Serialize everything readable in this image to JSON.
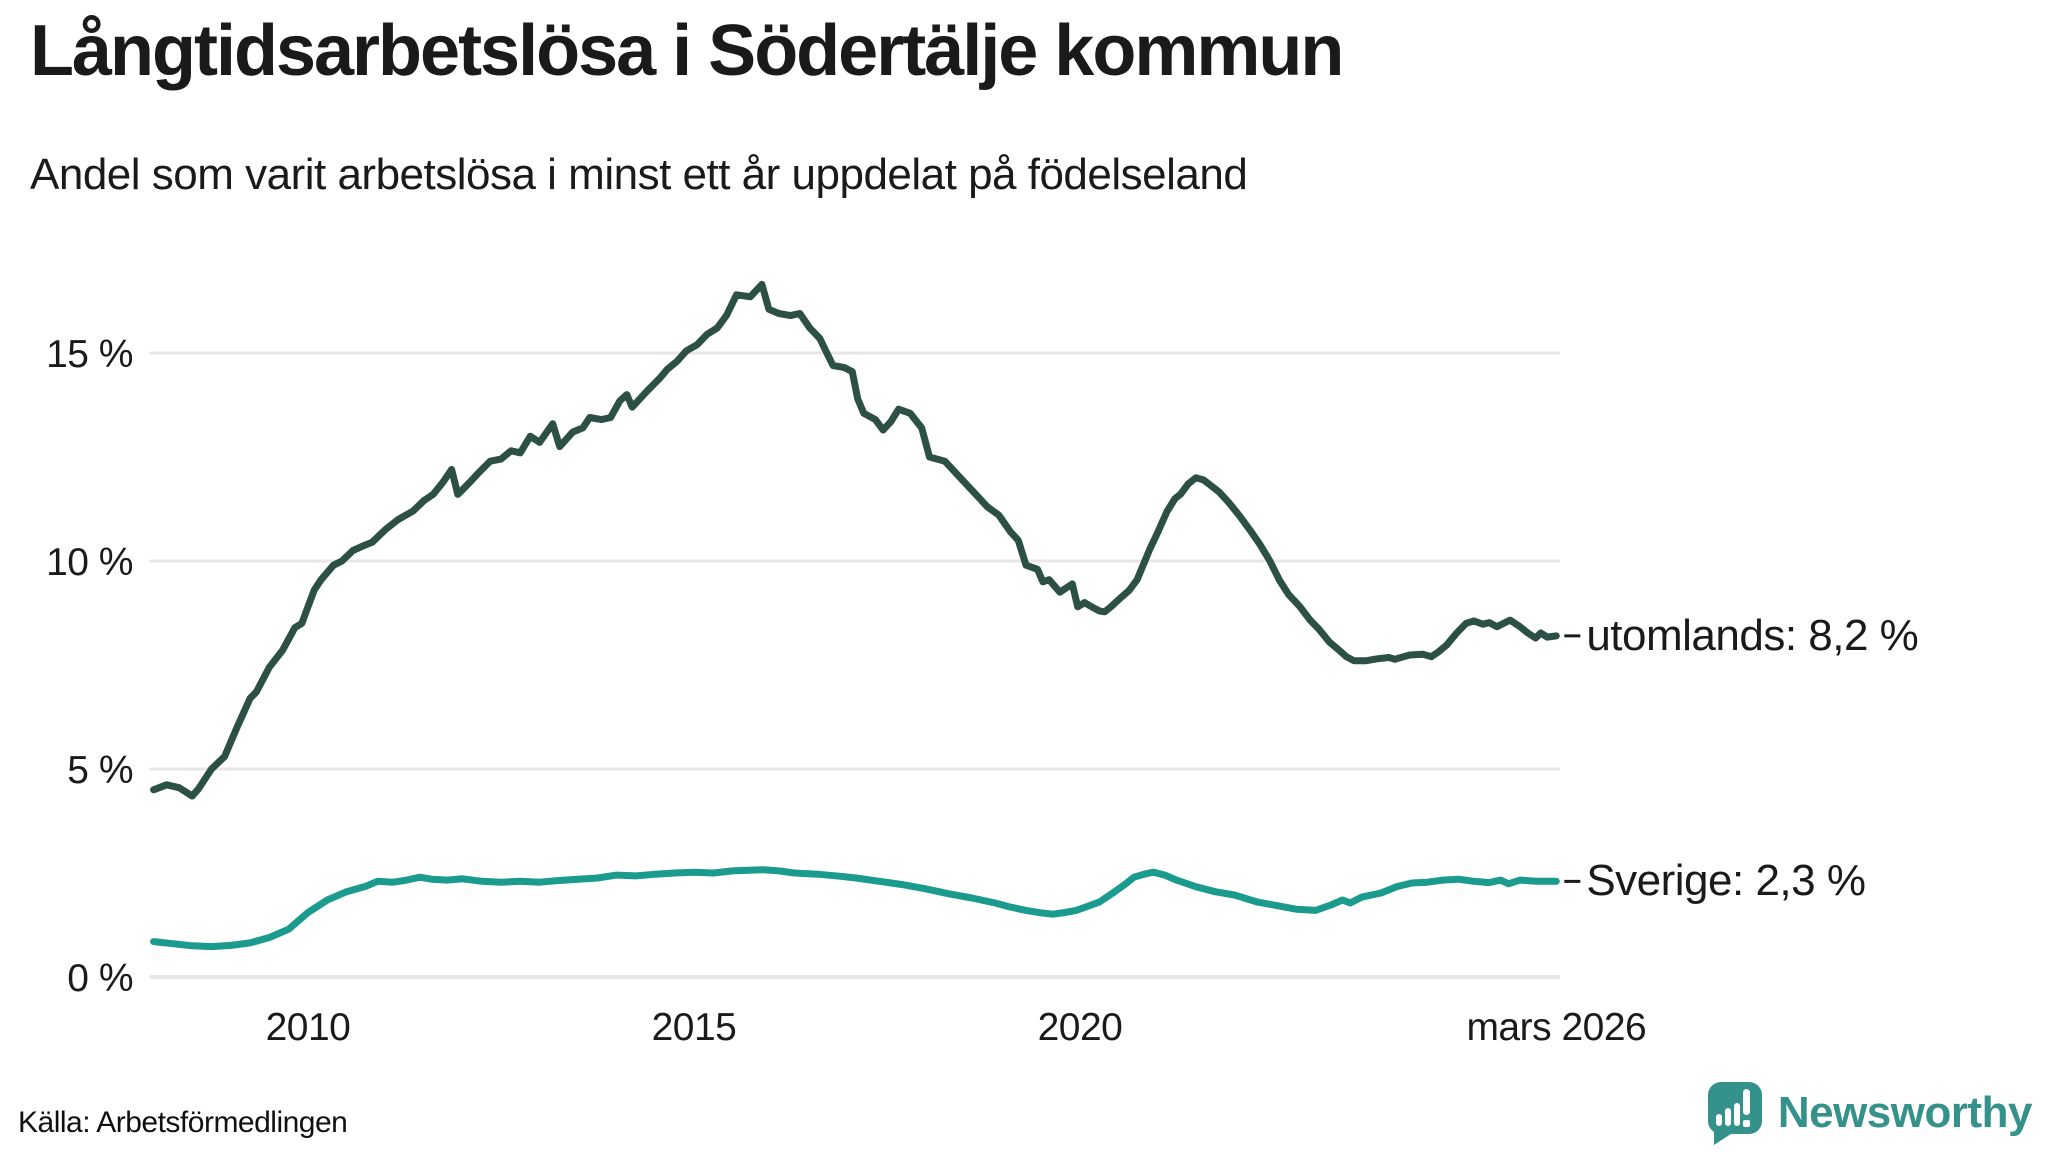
{
  "header": {
    "title": "Långtidsarbetslösa i Södertälje kommun",
    "subtitle": "Andel som varit arbetslösa i minst ett år uppdelat på födelseland"
  },
  "source": {
    "label": "Källa: Arbetsförmedlingen"
  },
  "branding": {
    "wordmark": "Newsworthy",
    "logo_icon": "newsworthy-speech-bubble-bar-chart-icon",
    "brand_color": "#35928A"
  },
  "chart_data": {
    "type": "line",
    "title": "Långtidsarbetslösa i Södertälje kommun",
    "subtitle": "Andel som varit arbetslösa i minst ett år uppdelat på födelseland",
    "unit": "%",
    "grid": true,
    "grid_color": "#E7E7E7",
    "text_color": "#1A1A1A",
    "legend_position": "right-end-labels",
    "x_axis": {
      "range": [
        2008.0,
        2026.25
      ],
      "ticks": [
        {
          "t": 2010,
          "label": "2010"
        },
        {
          "t": 2015,
          "label": "2015"
        },
        {
          "t": 2020,
          "label": "2020"
        },
        {
          "t": 2026.17,
          "label": "mars 2026"
        }
      ]
    },
    "y_axis": {
      "range": [
        0,
        17
      ],
      "ticks": [
        {
          "value": 15,
          "label": "15 %"
        },
        {
          "value": 10,
          "label": "10 %"
        },
        {
          "value": 5,
          "label": "5 %"
        },
        {
          "value": 0,
          "label": "0 %"
        }
      ]
    },
    "series": [
      {
        "name": "utomlands",
        "label": "utomlands: 8,2 %",
        "last_value": "8,2 %",
        "color": "#2C4F46",
        "points": [
          [
            2008.0,
            4.5
          ],
          [
            2008.17,
            4.62
          ],
          [
            2008.33,
            4.55
          ],
          [
            2008.5,
            4.35
          ],
          [
            2008.58,
            4.52
          ],
          [
            2008.75,
            5.0
          ],
          [
            2008.92,
            5.3
          ],
          [
            2009.08,
            6.0
          ],
          [
            2009.25,
            6.7
          ],
          [
            2009.33,
            6.85
          ],
          [
            2009.5,
            7.45
          ],
          [
            2009.67,
            7.85
          ],
          [
            2009.83,
            8.4
          ],
          [
            2009.92,
            8.5
          ],
          [
            2010.08,
            9.3
          ],
          [
            2010.17,
            9.55
          ],
          [
            2010.33,
            9.9
          ],
          [
            2010.44,
            10.0
          ],
          [
            2010.58,
            10.25
          ],
          [
            2010.7,
            10.35
          ],
          [
            2010.83,
            10.45
          ],
          [
            2011.0,
            10.75
          ],
          [
            2011.17,
            11.0
          ],
          [
            2011.36,
            11.2
          ],
          [
            2011.5,
            11.45
          ],
          [
            2011.62,
            11.6
          ],
          [
            2011.75,
            11.9
          ],
          [
            2011.86,
            12.2
          ],
          [
            2011.94,
            11.6
          ],
          [
            2012.1,
            11.9
          ],
          [
            2012.2,
            12.1
          ],
          [
            2012.36,
            12.4
          ],
          [
            2012.5,
            12.45
          ],
          [
            2012.63,
            12.65
          ],
          [
            2012.75,
            12.6
          ],
          [
            2012.88,
            13.0
          ],
          [
            2013.0,
            12.85
          ],
          [
            2013.17,
            13.3
          ],
          [
            2013.26,
            12.75
          ],
          [
            2013.43,
            13.1
          ],
          [
            2013.56,
            13.2
          ],
          [
            2013.65,
            13.45
          ],
          [
            2013.8,
            13.4
          ],
          [
            2013.92,
            13.45
          ],
          [
            2014.04,
            13.85
          ],
          [
            2014.13,
            14.0
          ],
          [
            2014.2,
            13.7
          ],
          [
            2014.4,
            14.1
          ],
          [
            2014.56,
            14.4
          ],
          [
            2014.65,
            14.6
          ],
          [
            2014.78,
            14.8
          ],
          [
            2014.9,
            15.05
          ],
          [
            2015.04,
            15.2
          ],
          [
            2015.17,
            15.45
          ],
          [
            2015.3,
            15.6
          ],
          [
            2015.42,
            15.9
          ],
          [
            2015.55,
            16.4
          ],
          [
            2015.73,
            16.35
          ],
          [
            2015.88,
            16.65
          ],
          [
            2015.97,
            16.05
          ],
          [
            2016.1,
            15.95
          ],
          [
            2016.25,
            15.9
          ],
          [
            2016.37,
            15.95
          ],
          [
            2016.5,
            15.6
          ],
          [
            2016.63,
            15.35
          ],
          [
            2016.72,
            15.0
          ],
          [
            2016.8,
            14.7
          ],
          [
            2016.95,
            14.65
          ],
          [
            2017.05,
            14.55
          ],
          [
            2017.12,
            13.9
          ],
          [
            2017.2,
            13.55
          ],
          [
            2017.35,
            13.4
          ],
          [
            2017.45,
            13.15
          ],
          [
            2017.55,
            13.35
          ],
          [
            2017.65,
            13.65
          ],
          [
            2017.8,
            13.55
          ],
          [
            2017.95,
            13.2
          ],
          [
            2018.05,
            12.5
          ],
          [
            2018.15,
            12.45
          ],
          [
            2018.25,
            12.4
          ],
          [
            2018.35,
            12.2
          ],
          [
            2018.5,
            11.9
          ],
          [
            2018.65,
            11.6
          ],
          [
            2018.8,
            11.3
          ],
          [
            2018.95,
            11.1
          ],
          [
            2019.1,
            10.7
          ],
          [
            2019.2,
            10.5
          ],
          [
            2019.3,
            9.9
          ],
          [
            2019.45,
            9.8
          ],
          [
            2019.52,
            9.5
          ],
          [
            2019.6,
            9.55
          ],
          [
            2019.74,
            9.25
          ],
          [
            2019.9,
            9.45
          ],
          [
            2019.97,
            8.9
          ],
          [
            2020.06,
            9.0
          ],
          [
            2020.15,
            8.9
          ],
          [
            2020.25,
            8.8
          ],
          [
            2020.32,
            8.78
          ],
          [
            2020.4,
            8.9
          ],
          [
            2020.5,
            9.07
          ],
          [
            2020.64,
            9.3
          ],
          [
            2020.74,
            9.55
          ],
          [
            2020.9,
            10.27
          ],
          [
            2021.0,
            10.66
          ],
          [
            2021.13,
            11.2
          ],
          [
            2021.23,
            11.5
          ],
          [
            2021.3,
            11.6
          ],
          [
            2021.4,
            11.85
          ],
          [
            2021.5,
            12.0
          ],
          [
            2021.6,
            11.95
          ],
          [
            2021.67,
            11.85
          ],
          [
            2021.8,
            11.66
          ],
          [
            2021.93,
            11.4
          ],
          [
            2022.06,
            11.1
          ],
          [
            2022.2,
            10.75
          ],
          [
            2022.33,
            10.4
          ],
          [
            2022.46,
            10.0
          ],
          [
            2022.58,
            9.55
          ],
          [
            2022.7,
            9.2
          ],
          [
            2022.85,
            8.9
          ],
          [
            2022.98,
            8.58
          ],
          [
            2023.1,
            8.35
          ],
          [
            2023.23,
            8.05
          ],
          [
            2023.36,
            7.85
          ],
          [
            2023.45,
            7.7
          ],
          [
            2023.55,
            7.6
          ],
          [
            2023.7,
            7.6
          ],
          [
            2023.85,
            7.65
          ],
          [
            2024.0,
            7.68
          ],
          [
            2024.08,
            7.64
          ],
          [
            2024.27,
            7.74
          ],
          [
            2024.44,
            7.76
          ],
          [
            2024.55,
            7.7
          ],
          [
            2024.64,
            7.81
          ],
          [
            2024.75,
            7.98
          ],
          [
            2024.88,
            8.27
          ],
          [
            2025.0,
            8.5
          ],
          [
            2025.1,
            8.56
          ],
          [
            2025.22,
            8.48
          ],
          [
            2025.3,
            8.52
          ],
          [
            2025.4,
            8.42
          ],
          [
            2025.57,
            8.58
          ],
          [
            2025.7,
            8.42
          ],
          [
            2025.8,
            8.27
          ],
          [
            2025.9,
            8.15
          ],
          [
            2025.97,
            8.27
          ],
          [
            2026.05,
            8.17
          ],
          [
            2026.17,
            8.2
          ]
        ]
      },
      {
        "name": "Sverige",
        "label": "Sverige: 2,3 %",
        "last_value": "2,3 %",
        "color": "#1A9B8D",
        "points": [
          [
            2008.0,
            0.85
          ],
          [
            2008.25,
            0.8
          ],
          [
            2008.5,
            0.75
          ],
          [
            2008.75,
            0.73
          ],
          [
            2009.0,
            0.76
          ],
          [
            2009.25,
            0.82
          ],
          [
            2009.5,
            0.95
          ],
          [
            2009.75,
            1.15
          ],
          [
            2010.0,
            1.55
          ],
          [
            2010.25,
            1.85
          ],
          [
            2010.5,
            2.05
          ],
          [
            2010.75,
            2.18
          ],
          [
            2010.9,
            2.3
          ],
          [
            2011.1,
            2.28
          ],
          [
            2011.25,
            2.32
          ],
          [
            2011.45,
            2.4
          ],
          [
            2011.6,
            2.35
          ],
          [
            2011.8,
            2.33
          ],
          [
            2012.0,
            2.36
          ],
          [
            2012.25,
            2.3
          ],
          [
            2012.5,
            2.28
          ],
          [
            2012.75,
            2.3
          ],
          [
            2013.0,
            2.28
          ],
          [
            2013.25,
            2.32
          ],
          [
            2013.5,
            2.35
          ],
          [
            2013.75,
            2.38
          ],
          [
            2014.0,
            2.45
          ],
          [
            2014.25,
            2.43
          ],
          [
            2014.5,
            2.47
          ],
          [
            2014.75,
            2.5
          ],
          [
            2015.0,
            2.52
          ],
          [
            2015.25,
            2.5
          ],
          [
            2015.5,
            2.55
          ],
          [
            2015.75,
            2.57
          ],
          [
            2015.9,
            2.58
          ],
          [
            2016.1,
            2.55
          ],
          [
            2016.3,
            2.5
          ],
          [
            2016.6,
            2.47
          ],
          [
            2016.9,
            2.42
          ],
          [
            2017.1,
            2.38
          ],
          [
            2017.4,
            2.3
          ],
          [
            2017.7,
            2.22
          ],
          [
            2018.0,
            2.12
          ],
          [
            2018.3,
            2.0
          ],
          [
            2018.6,
            1.9
          ],
          [
            2018.9,
            1.78
          ],
          [
            2019.1,
            1.68
          ],
          [
            2019.3,
            1.6
          ],
          [
            2019.5,
            1.54
          ],
          [
            2019.65,
            1.51
          ],
          [
            2019.8,
            1.55
          ],
          [
            2019.95,
            1.6
          ],
          [
            2020.1,
            1.7
          ],
          [
            2020.25,
            1.8
          ],
          [
            2020.45,
            2.05
          ],
          [
            2020.6,
            2.25
          ],
          [
            2020.7,
            2.4
          ],
          [
            2020.85,
            2.48
          ],
          [
            2020.95,
            2.52
          ],
          [
            2021.1,
            2.45
          ],
          [
            2021.25,
            2.33
          ],
          [
            2021.5,
            2.17
          ],
          [
            2021.75,
            2.05
          ],
          [
            2022.0,
            1.97
          ],
          [
            2022.3,
            1.8
          ],
          [
            2022.6,
            1.7
          ],
          [
            2022.8,
            1.63
          ],
          [
            2023.05,
            1.6
          ],
          [
            2023.25,
            1.73
          ],
          [
            2023.4,
            1.85
          ],
          [
            2023.5,
            1.78
          ],
          [
            2023.65,
            1.92
          ],
          [
            2023.9,
            2.02
          ],
          [
            2024.1,
            2.17
          ],
          [
            2024.3,
            2.26
          ],
          [
            2024.5,
            2.28
          ],
          [
            2024.7,
            2.33
          ],
          [
            2024.9,
            2.35
          ],
          [
            2025.1,
            2.3
          ],
          [
            2025.3,
            2.27
          ],
          [
            2025.45,
            2.33
          ],
          [
            2025.55,
            2.24
          ],
          [
            2025.7,
            2.33
          ],
          [
            2025.9,
            2.3
          ],
          [
            2026.17,
            2.3
          ]
        ]
      }
    ]
  }
}
